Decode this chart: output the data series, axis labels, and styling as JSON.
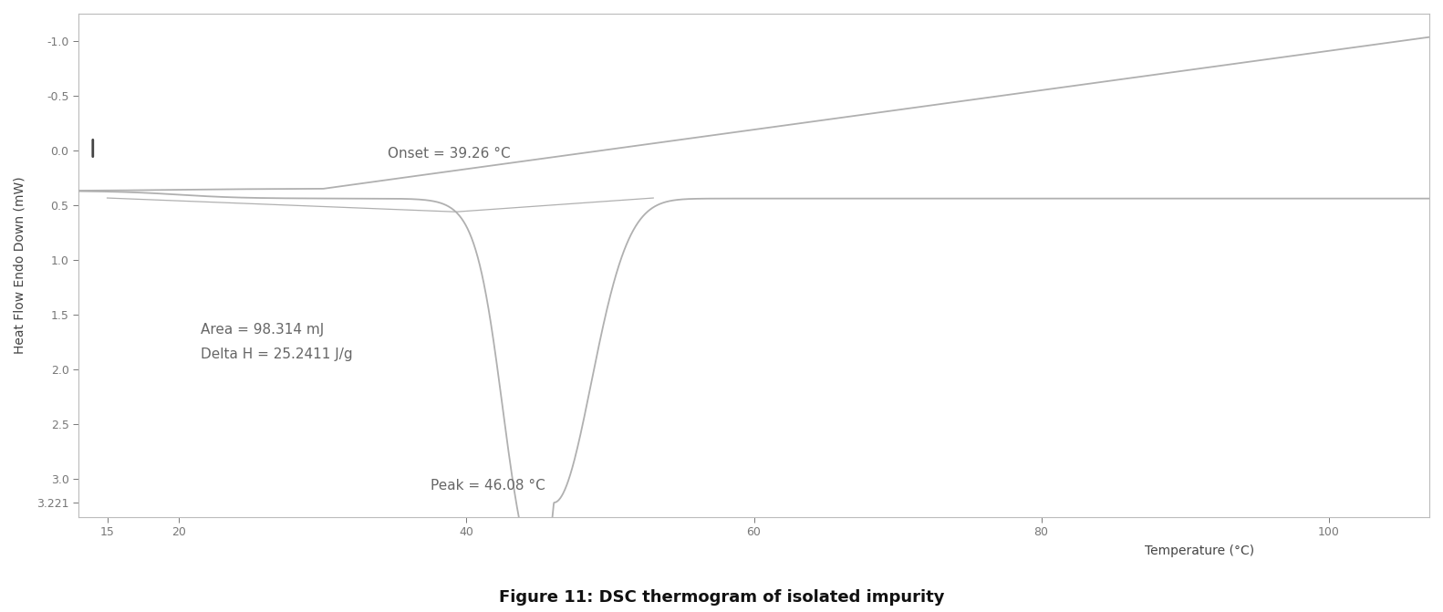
{
  "title": "Figure 11: DSC thermogram of isolated impurity",
  "ylabel": "Heat Flow Endo Down (mW)",
  "xlabel": "Temperature (°C)",
  "xlim": [
    13,
    107
  ],
  "ylim": [
    3.35,
    -1.25
  ],
  "yticks": [
    -1.0,
    -0.5,
    0.0,
    0.5,
    1.0,
    1.5,
    2.0,
    2.5,
    3.0,
    3.221
  ],
  "xticks": [
    15,
    20,
    40,
    60,
    80,
    100
  ],
  "line_color": "#b0b0b0",
  "bg_color": "#ffffff",
  "onset_temp": 39.26,
  "peak_temp": 46.08,
  "onset_label": "Onset = 39.26 °C",
  "peak_label": "Peak = 46.08 °C",
  "area_label": "Area = 98.314 mJ",
  "deltah_label": "Delta H = 25.2411 J/g",
  "annotation_color": "#666666",
  "font_size": 11,
  "title_font_size": 13
}
